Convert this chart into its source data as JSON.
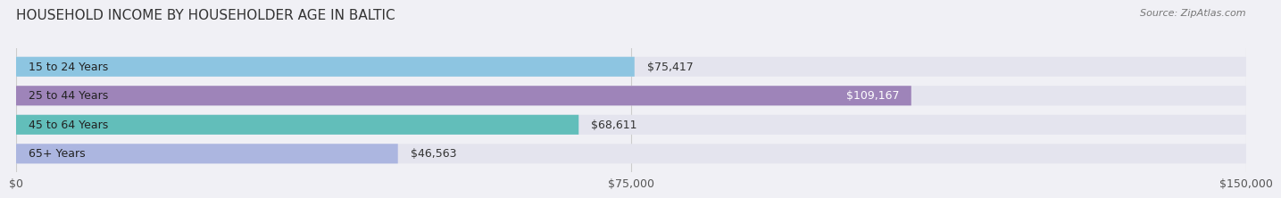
{
  "title": "HOUSEHOLD INCOME BY HOUSEHOLDER AGE IN BALTIC",
  "source": "Source: ZipAtlas.com",
  "categories": [
    "15 to 24 Years",
    "25 to 44 Years",
    "45 to 64 Years",
    "65+ Years"
  ],
  "values": [
    75417,
    109167,
    68611,
    46563
  ],
  "bar_colors": [
    "#89c4e1",
    "#9b7fb6",
    "#5bbcb8",
    "#a9b4e0"
  ],
  "bar_labels": [
    "$75,417",
    "$109,167",
    "$68,611",
    "$46,563"
  ],
  "label_inside": [
    false,
    true,
    false,
    false
  ],
  "xlim": [
    0,
    150000
  ],
  "xticks": [
    0,
    75000,
    150000
  ],
  "xticklabels": [
    "$0",
    "$75,000",
    "$150,000"
  ],
  "background_color": "#f0f0f5",
  "bar_bg_color": "#e4e4ee",
  "title_fontsize": 11,
  "source_fontsize": 8,
  "tick_fontsize": 9,
  "label_fontsize": 9,
  "category_fontsize": 9
}
